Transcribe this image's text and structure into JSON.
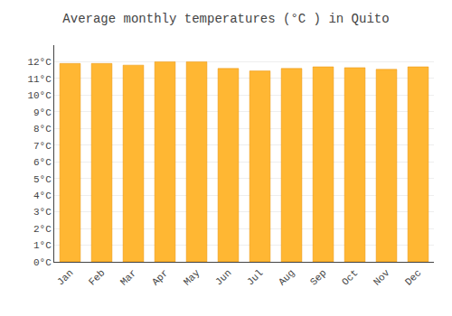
{
  "chart_data": {
    "type": "bar",
    "title": "Average monthly temperatures (°C ) in Quito",
    "categories": [
      "Jan",
      "Feb",
      "Mar",
      "Apr",
      "May",
      "Jun",
      "Jul",
      "Aug",
      "Sep",
      "Oct",
      "Nov",
      "Dec"
    ],
    "values": [
      11.9,
      11.9,
      11.8,
      12.0,
      12.0,
      11.6,
      11.45,
      11.6,
      11.7,
      11.65,
      11.55,
      11.7
    ],
    "color": "#FFB733",
    "ylim": [
      0,
      13
    ],
    "yticks": [
      {
        "value": 0,
        "label": "0°C"
      },
      {
        "value": 1,
        "label": "1°C"
      },
      {
        "value": 2,
        "label": "2°C"
      },
      {
        "value": 3,
        "label": "3°C"
      },
      {
        "value": 4,
        "label": "4°C"
      },
      {
        "value": 5,
        "label": "5°C"
      },
      {
        "value": 6,
        "label": "6°C"
      },
      {
        "value": 7,
        "label": "7°C"
      },
      {
        "value": 8,
        "label": "8°C"
      },
      {
        "value": 9,
        "label": "9°C"
      },
      {
        "value": 10,
        "label": "10°C"
      },
      {
        "value": 11,
        "label": "11°C"
      },
      {
        "value": 12,
        "label": "12°C"
      }
    ],
    "grid": true
  }
}
